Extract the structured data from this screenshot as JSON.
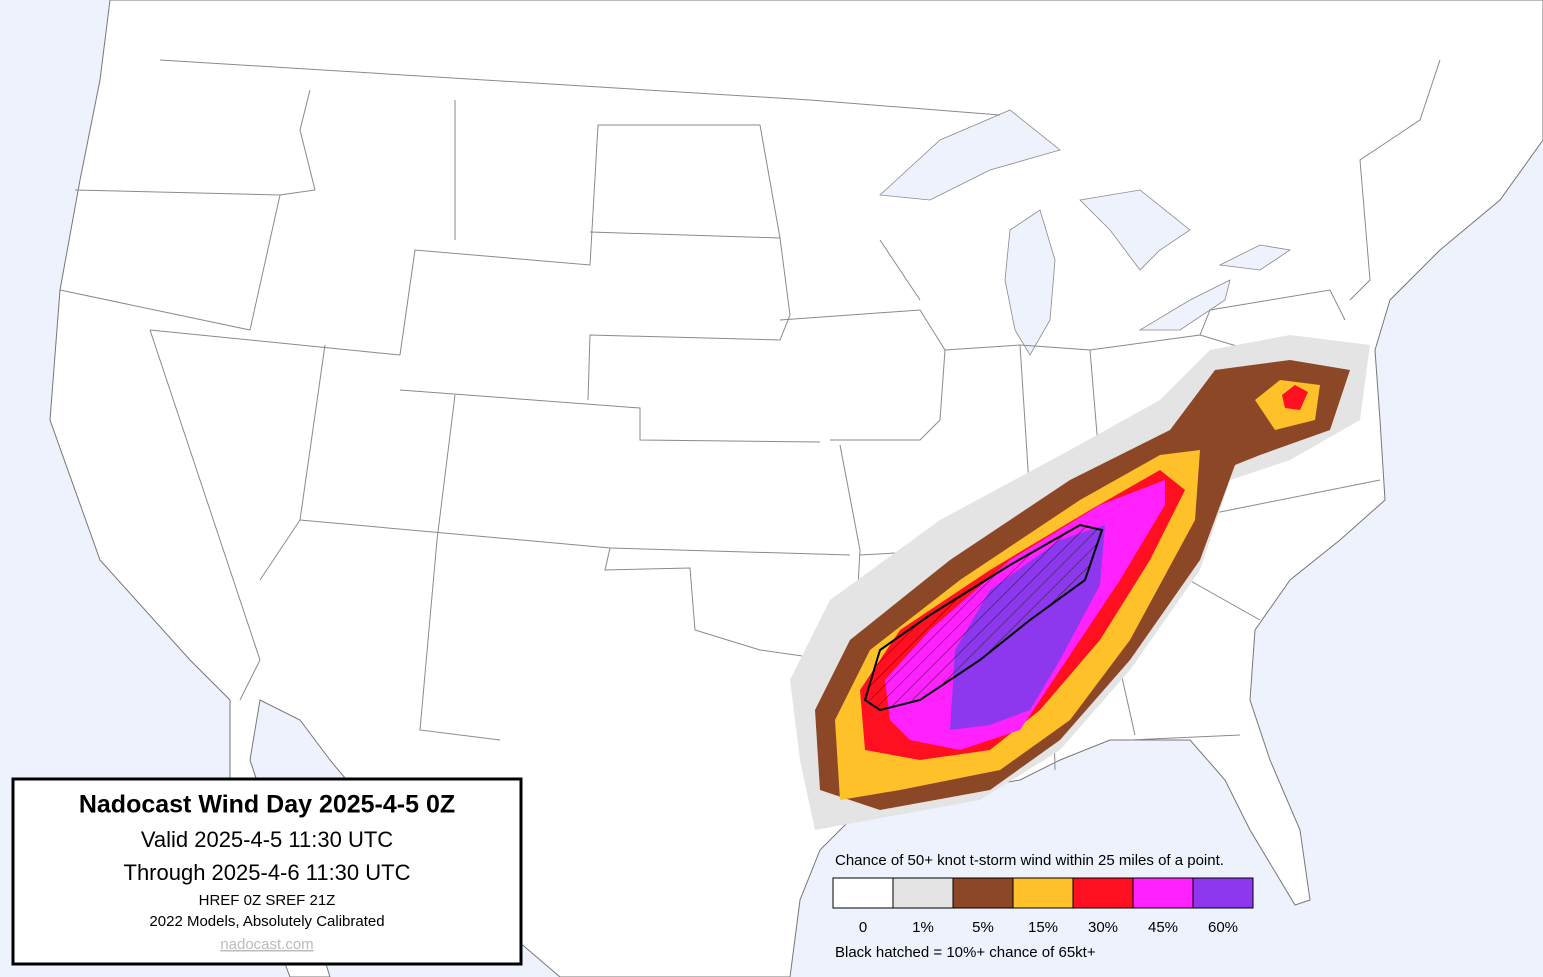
{
  "title_box": {
    "title": "Nadocast Wind Day 2025-4-5 0Z",
    "valid": "Valid 2025-4-5 11:30 UTC",
    "through": "Through 2025-4-6 11:30 UTC",
    "models": "HREF 0Z SREF 21Z",
    "calibration": "2022 Models, Absolutely Calibrated",
    "link": "nadocast.com"
  },
  "legend": {
    "caption": "Chance of 50+ knot t-storm wind within 25 miles of a point.",
    "levels": [
      {
        "label": "0",
        "color": "#ffffff"
      },
      {
        "label": "1%",
        "color": "#e4e4e4"
      },
      {
        "label": "5%",
        "color": "#8b4726"
      },
      {
        "label": "15%",
        "color": "#ffc12a"
      },
      {
        "label": "30%",
        "color": "#ff1020"
      },
      {
        "label": "45%",
        "color": "#ff22ff"
      },
      {
        "label": "60%",
        "color": "#8d37ef"
      }
    ],
    "note": "Black hatched = 10%+ chance of 65kt+"
  }
}
